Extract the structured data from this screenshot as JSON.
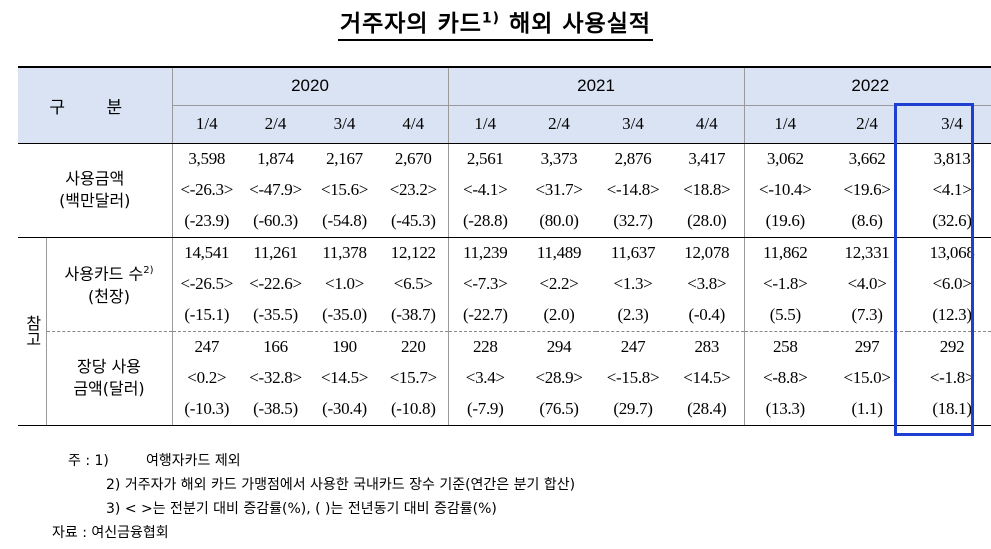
{
  "title": {
    "text": "거주자의 카드",
    "sup": "1)",
    "rest": " 해외 사용실적"
  },
  "header": {
    "corner": "구 분",
    "years": [
      "2020",
      "2021",
      "2022"
    ],
    "quarters": [
      "1/4",
      "2/4",
      "3/4",
      "4/4",
      "1/4",
      "2/4",
      "3/4",
      "4/4",
      "1/4",
      "2/4",
      "3/4"
    ]
  },
  "side_label": "참고",
  "rows": [
    {
      "label1": "사용금액",
      "label2": "(백만달러)",
      "label_sup": "",
      "values": [
        "3,598",
        "1,874",
        "2,167",
        "2,670",
        "2,561",
        "3,373",
        "2,876",
        "3,417",
        "3,062",
        "3,662",
        "3,813"
      ],
      "qoq": [
        "<-26.3>",
        "<-47.9>",
        "<15.6>",
        "<23.2>",
        "<-4.1>",
        "<31.7>",
        "<-14.8>",
        "<18.8>",
        "<-10.4>",
        "<19.6>",
        "<4.1>"
      ],
      "yoy": [
        "(-23.9)",
        "(-60.3)",
        "(-54.8)",
        "(-45.3)",
        "(-28.8)",
        "(80.0)",
        "(32.7)",
        "(28.0)",
        "(19.6)",
        "(8.6)",
        "(32.6)"
      ]
    },
    {
      "label1": "사용카드 수",
      "label2": "(천장)",
      "label_sup": "2)",
      "values": [
        "14,541",
        "11,261",
        "11,378",
        "12,122",
        "11,239",
        "11,489",
        "11,637",
        "12,078",
        "11,862",
        "12,331",
        "13,068"
      ],
      "qoq": [
        "<-26.5>",
        "<-22.6>",
        "<1.0>",
        "<6.5>",
        "<-7.3>",
        "<2.2>",
        "<1.3>",
        "<3.8>",
        "<-1.8>",
        "<4.0>",
        "<6.0>"
      ],
      "yoy": [
        "(-15.1)",
        "(-35.5)",
        "(-35.0)",
        "(-38.7)",
        "(-22.7)",
        "(2.0)",
        "(2.3)",
        "(-0.4)",
        "(5.5)",
        "(7.3)",
        "(12.3)"
      ]
    },
    {
      "label1": "장당 사용",
      "label2": "금액(달러)",
      "label_sup": "",
      "values": [
        "247",
        "166",
        "190",
        "220",
        "228",
        "294",
        "247",
        "283",
        "258",
        "297",
        "292"
      ],
      "qoq": [
        "<0.2>",
        "<-32.8>",
        "<14.5>",
        "<15.7>",
        "<3.4>",
        "<28.9>",
        "<-15.8>",
        "<14.5>",
        "<-8.8>",
        "<15.0>",
        "<-1.8>"
      ],
      "yoy": [
        "(-10.3)",
        "(-38.5)",
        "(-30.4)",
        "(-10.8)",
        "(-7.9)",
        "(76.5)",
        "(29.7)",
        "(28.4)",
        "(13.3)",
        "(1.1)",
        "(18.1)"
      ]
    }
  ],
  "notes": {
    "n1_prefix": "주 : 1)",
    "n1": "여행자카드 제외",
    "n2": "2) 거주자가 해외 카드 가맹점에서 사용한 국내카드 장수 기준(연간은 분기 합산)",
    "n3": "3) <     >는 전분기 대비 증감률(%), (     )는 전년동기 대비 증감률(%)",
    "source": "자료 : 여신금융협회"
  },
  "colors": {
    "header_bg": "#dae3f3",
    "highlight_border": "#1f3fd1"
  }
}
